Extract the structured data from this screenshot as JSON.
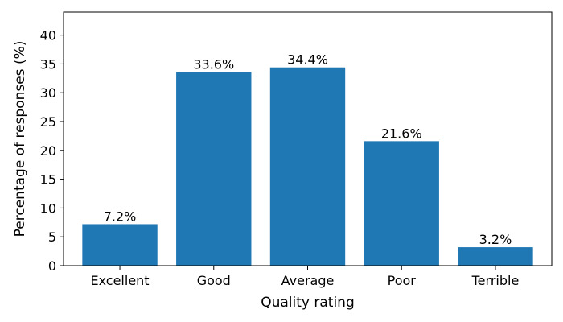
{
  "chart_data": {
    "type": "bar",
    "title": "",
    "xlabel": "Quality rating",
    "ylabel": "Percentage of responses (%)",
    "categories": [
      "Excellent",
      "Good",
      "Average",
      "Poor",
      "Terrible"
    ],
    "values": [
      7.2,
      33.6,
      34.4,
      21.6,
      3.2
    ],
    "value_labels": [
      "7.2%",
      "33.6%",
      "34.4%",
      "21.6%",
      "3.2%"
    ],
    "ylim": [
      0,
      44
    ],
    "yticks": [
      0,
      5,
      10,
      15,
      20,
      25,
      30,
      35,
      40
    ],
    "grid": false,
    "legend": "none",
    "bar_color": "#1f77b4"
  }
}
